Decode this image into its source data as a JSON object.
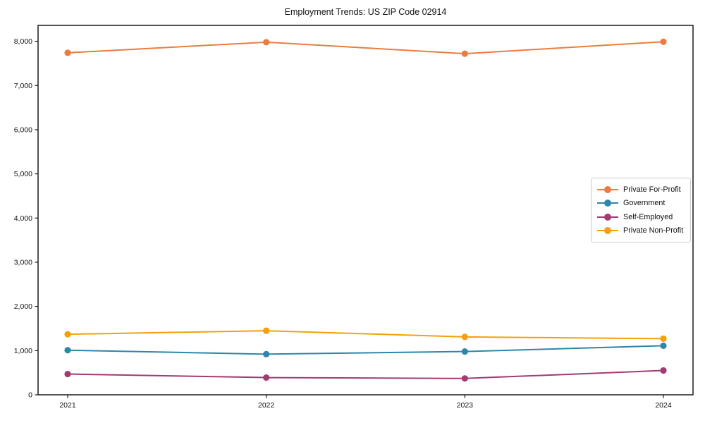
{
  "chart_data": {
    "type": "line",
    "title": "Employment Trends: US ZIP Code 02914",
    "xlabel": "",
    "ylabel": "",
    "categories": [
      "2021",
      "2022",
      "2023",
      "2024"
    ],
    "series": [
      {
        "name": "Private For-Profit",
        "color": "#ec7c3e",
        "values": [
          7740,
          7980,
          7720,
          7990
        ]
      },
      {
        "name": "Government",
        "color": "#2e86ab",
        "values": [
          1010,
          920,
          980,
          1110
        ]
      },
      {
        "name": "Self-Employed",
        "color": "#a23b72",
        "values": [
          470,
          390,
          370,
          550
        ]
      },
      {
        "name": "Private Non-Profit",
        "color": "#f5a00a",
        "values": [
          1370,
          1450,
          1310,
          1270
        ]
      }
    ],
    "ylim": [
      0,
      8360
    ],
    "yticks": [
      0,
      1000,
      2000,
      3000,
      4000,
      5000,
      6000,
      7000,
      8000
    ],
    "ytick_labels": [
      "0",
      "1,000",
      "2,000",
      "3,000",
      "4,000",
      "5,000",
      "6,000",
      "7,000",
      "8,000"
    ],
    "grid": false,
    "legend_position": "center right",
    "axis_color": "#1a1a1a",
    "marker": "circle"
  }
}
